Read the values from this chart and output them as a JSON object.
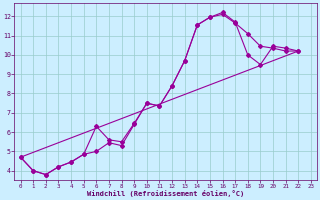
{
  "background_color": "#cceeff",
  "line_color": "#990099",
  "grid_color": "#99cccc",
  "xlabel": "Windchill (Refroidissement éolien,°C)",
  "xlim": [
    -0.5,
    23.5
  ],
  "ylim": [
    3.5,
    12.7
  ],
  "yticks": [
    4,
    5,
    6,
    7,
    8,
    9,
    10,
    11,
    12
  ],
  "xticks": [
    0,
    1,
    2,
    3,
    4,
    5,
    6,
    7,
    8,
    9,
    10,
    11,
    12,
    13,
    14,
    15,
    16,
    17,
    18,
    19,
    20,
    21,
    22,
    23
  ],
  "curve1_x": [
    0,
    1,
    2,
    3,
    4,
    5,
    6,
    7,
    8,
    9,
    10,
    11,
    12,
    13,
    14,
    15,
    16,
    17,
    18,
    19,
    20,
    21,
    22
  ],
  "curve1_y": [
    4.7,
    4.0,
    3.8,
    4.2,
    4.45,
    4.85,
    5.0,
    5.45,
    5.3,
    6.4,
    7.5,
    7.35,
    8.4,
    9.7,
    11.55,
    11.95,
    12.1,
    11.65,
    11.1,
    10.45,
    10.35,
    10.2,
    10.2
  ],
  "curve2_x": [
    0,
    1,
    2,
    3,
    4,
    5,
    6,
    7,
    8,
    9,
    10,
    11,
    12,
    13,
    14,
    15,
    16,
    17,
    18,
    19,
    20,
    21,
    22
  ],
  "curve2_y": [
    4.7,
    4.0,
    3.8,
    4.2,
    4.45,
    4.85,
    6.3,
    5.6,
    5.5,
    6.45,
    7.5,
    7.35,
    8.4,
    9.7,
    11.55,
    11.95,
    12.2,
    11.7,
    10.0,
    9.5,
    10.45,
    10.35,
    10.2
  ],
  "curve3_x": [
    0,
    22
  ],
  "curve3_y": [
    4.7,
    10.2
  ],
  "tick_color": "#660066",
  "spine_color": "#660066"
}
